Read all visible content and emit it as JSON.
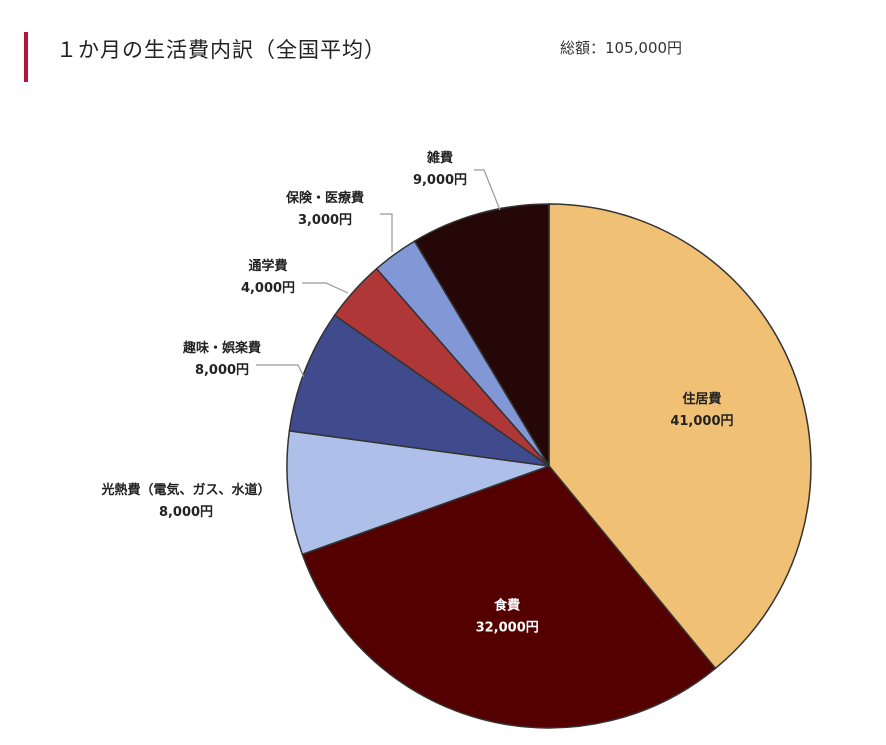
{
  "header": {
    "title": "１か月の生活費内訳（全国平均）",
    "total": "総額：105,000円"
  },
  "chart_data": {
    "type": "pie",
    "title": "１か月の生活費内訳（全国平均）",
    "unit": "円",
    "total": 105000,
    "slices": [
      {
        "name": "住居費",
        "value": 41000,
        "label": "41,000円",
        "color": "#f0c175",
        "text_color": "#222222"
      },
      {
        "name": "食費",
        "value": 32000,
        "label": "32,000円",
        "color": "#550000",
        "text_color": "#ffffff"
      },
      {
        "name": "光熱費（電気、ガス、水道）",
        "value": 8000,
        "label": "8,000円",
        "color": "#aebfea",
        "text_color": "#222222"
      },
      {
        "name": "趣味・娯楽費",
        "value": 8000,
        "label": "8,000円",
        "color": "#3f4b8c",
        "text_color": "#222222"
      },
      {
        "name": "通学費",
        "value": 4000,
        "label": "4,000円",
        "color": "#b03737",
        "text_color": "#222222"
      },
      {
        "name": "保険・医療費",
        "value": 3000,
        "label": "3,000円",
        "color": "#8197d6",
        "text_color": "#222222"
      },
      {
        "name": "雑費",
        "value": 9000,
        "label": "9,000円",
        "color": "#260707",
        "text_color": "#222222"
      }
    ]
  }
}
